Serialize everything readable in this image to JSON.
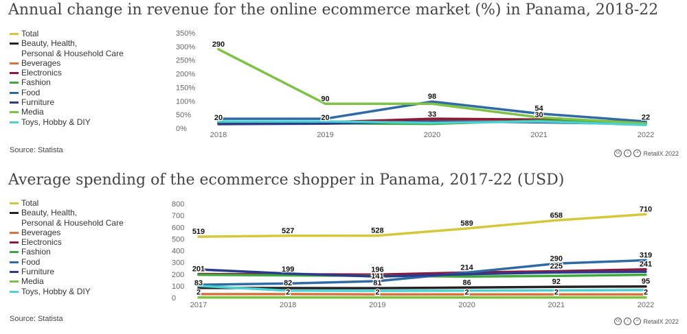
{
  "chart_data": [
    {
      "type": "line",
      "title": "Annual change in revenue for the online ecommerce market (%) in Panama, 2018-22",
      "x": [
        "2018",
        "2019",
        "2020",
        "2021",
        "2022"
      ],
      "ylim": [
        0,
        350
      ],
      "yticks": [
        "0%",
        "50%",
        "100%",
        "150%",
        "200%",
        "250%",
        "300%",
        "350%"
      ],
      "ytick_values": [
        0,
        50,
        100,
        150,
        200,
        250,
        300,
        350
      ],
      "legend_position": "left",
      "source": "Source: Statista",
      "credit": "RetailX 2022",
      "series": [
        {
          "name": "Total",
          "color": "#d4c83a",
          "values": [
            20,
            20,
            33,
            30,
            22
          ]
        },
        {
          "name": "Beauty, Health,\nPersonal & Household Care",
          "color": "#222222",
          "values": [
            20,
            20,
            30,
            30,
            20
          ]
        },
        {
          "name": "Beverages",
          "color": "#d9733a",
          "values": [
            18,
            19,
            28,
            28,
            20
          ]
        },
        {
          "name": "Electronics",
          "color": "#8b1a3a",
          "values": [
            22,
            22,
            35,
            32,
            22
          ]
        },
        {
          "name": "Fashion",
          "color": "#3caa3c",
          "values": [
            17,
            18,
            16,
            28,
            18
          ]
        },
        {
          "name": "Food",
          "color": "#2f6aa5",
          "values": [
            35,
            35,
            98,
            54,
            25
          ]
        },
        {
          "name": "Furniture",
          "color": "#2b3a8c",
          "values": [
            15,
            17,
            25,
            22,
            15
          ]
        },
        {
          "name": "Media",
          "color": "#7ec244",
          "values": [
            290,
            90,
            90,
            40,
            18
          ]
        },
        {
          "name": "Toys, Hobby & DIY",
          "color": "#4dd0d0",
          "values": [
            25,
            25,
            20,
            25,
            12
          ]
        }
      ],
      "data_labels": [
        {
          "x": "2018",
          "y": 290,
          "text": "290"
        },
        {
          "x": "2018",
          "y": 20,
          "text": "20"
        },
        {
          "x": "2019",
          "y": 90,
          "text": "90"
        },
        {
          "x": "2019",
          "y": 20,
          "text": "20"
        },
        {
          "x": "2020",
          "y": 98,
          "text": "98"
        },
        {
          "x": "2020",
          "y": 33,
          "text": "33"
        },
        {
          "x": "2021",
          "y": 54,
          "text": "54"
        },
        {
          "x": "2021",
          "y": 30,
          "text": "30"
        },
        {
          "x": "2022",
          "y": 22,
          "text": "22"
        }
      ]
    },
    {
      "type": "line",
      "title": "Average spending of the ecommerce shopper in Panama, 2017-22 (USD)",
      "x": [
        "2017",
        "2018",
        "2019",
        "2020",
        "2021",
        "2022"
      ],
      "ylim": [
        0,
        800
      ],
      "yticks": [
        "0",
        "100",
        "200",
        "300",
        "400",
        "500",
        "600",
        "700",
        "800"
      ],
      "ytick_values": [
        0,
        100,
        200,
        300,
        400,
        500,
        600,
        700,
        800
      ],
      "legend_position": "left",
      "source": "Source: Statista",
      "credit": "RetailX 2022",
      "series": [
        {
          "name": "Total",
          "color": "#d4c83a",
          "values": [
            519,
            527,
            528,
            589,
            658,
            710
          ]
        },
        {
          "name": "Beauty, Health,\nPersonal & Household Care",
          "color": "#222222",
          "values": [
            83,
            82,
            81,
            86,
            92,
            95
          ]
        },
        {
          "name": "Beverages",
          "color": "#d9733a",
          "values": [
            30,
            30,
            28,
            28,
            28,
            28
          ]
        },
        {
          "name": "Electronics",
          "color": "#8b1a3a",
          "values": [
            201,
            199,
            196,
            214,
            225,
            241
          ]
        },
        {
          "name": "Fashion",
          "color": "#3caa3c",
          "values": [
            195,
            190,
            185,
            180,
            185,
            195
          ]
        },
        {
          "name": "Food",
          "color": "#2f6aa5",
          "values": [
            110,
            120,
            141,
            214,
            290,
            319
          ]
        },
        {
          "name": "Furniture",
          "color": "#2b3a8c",
          "values": [
            240,
            205,
            180,
            200,
            215,
            220
          ]
        },
        {
          "name": "Media",
          "color": "#7ec244",
          "values": [
            2,
            2,
            2,
            2,
            2,
            2
          ]
        },
        {
          "name": "Toys, Hobby & DIY",
          "color": "#4dd0d0",
          "values": [
            100,
            60,
            58,
            60,
            62,
            65
          ]
        }
      ],
      "data_labels": [
        {
          "x": "2017",
          "y": 519,
          "text": "519"
        },
        {
          "x": "2018",
          "y": 527,
          "text": "527"
        },
        {
          "x": "2019",
          "y": 528,
          "text": "528"
        },
        {
          "x": "2020",
          "y": 589,
          "text": "589"
        },
        {
          "x": "2021",
          "y": 658,
          "text": "658"
        },
        {
          "x": "2022",
          "y": 710,
          "text": "710"
        },
        {
          "x": "2017",
          "y": 201,
          "text": "201"
        },
        {
          "x": "2018",
          "y": 199,
          "text": "199"
        },
        {
          "x": "2019",
          "y": 196,
          "text": "196"
        },
        {
          "x": "2020",
          "y": 214,
          "text": "214"
        },
        {
          "x": "2021",
          "y": 290,
          "text": "290"
        },
        {
          "x": "2022",
          "y": 319,
          "text": "319"
        },
        {
          "x": "2021",
          "y": 225,
          "text": "225"
        },
        {
          "x": "2022",
          "y": 241,
          "text": "241"
        },
        {
          "x": "2019",
          "y": 141,
          "text": "141"
        },
        {
          "x": "2017",
          "y": 83,
          "text": "83"
        },
        {
          "x": "2018",
          "y": 82,
          "text": "82"
        },
        {
          "x": "2019",
          "y": 81,
          "text": "81"
        },
        {
          "x": "2020",
          "y": 86,
          "text": "86"
        },
        {
          "x": "2021",
          "y": 92,
          "text": "92"
        },
        {
          "x": "2022",
          "y": 95,
          "text": "95"
        },
        {
          "x": "2017",
          "y": 2,
          "text": "2"
        },
        {
          "x": "2018",
          "y": 2,
          "text": "2"
        },
        {
          "x": "2019",
          "y": 2,
          "text": "2"
        },
        {
          "x": "2020",
          "y": 2,
          "text": "2"
        },
        {
          "x": "2021",
          "y": 2,
          "text": "2"
        },
        {
          "x": "2022",
          "y": 2,
          "text": "2"
        }
      ]
    }
  ]
}
